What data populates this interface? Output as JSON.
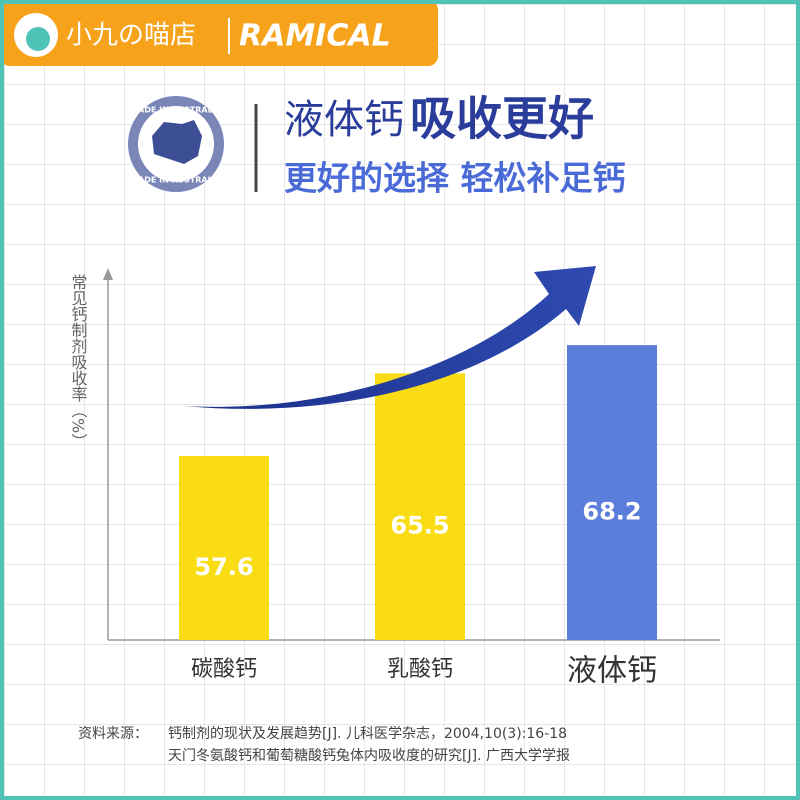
{
  "banner": {
    "shop": "小九の喵店",
    "brand": "RAMICAL"
  },
  "badge": {
    "top": "MADE IN AUSTRALIA",
    "bottom": "MADE IN AUSTRALIA"
  },
  "header": {
    "title_regular": "液体钙",
    "title_bold": "吸收更好",
    "subtitle": "更好的选择 轻松补足钙"
  },
  "chart_data": {
    "type": "bar",
    "ylabel": "常见钙制剂吸收率（%）",
    "categories": [
      "碳酸钙",
      "乳酸钙",
      "液体钙"
    ],
    "values": [
      57.6,
      65.5,
      68.2
    ],
    "value_labels": [
      "57.6",
      "65.5",
      "68.2"
    ],
    "colors": [
      "#fadc14",
      "#fadc14",
      "#5b7ddc"
    ],
    "ylim": [
      40,
      75
    ]
  },
  "source": {
    "label": "资料来源：",
    "lines": [
      "钙制剂的现状及发展趋势[J]. 儿科医学杂志，2004,10(3):16-18",
      "天门冬氨酸钙和葡萄糖酸钙兔体内吸收度的研究[J]. 广西大学学报"
    ]
  }
}
